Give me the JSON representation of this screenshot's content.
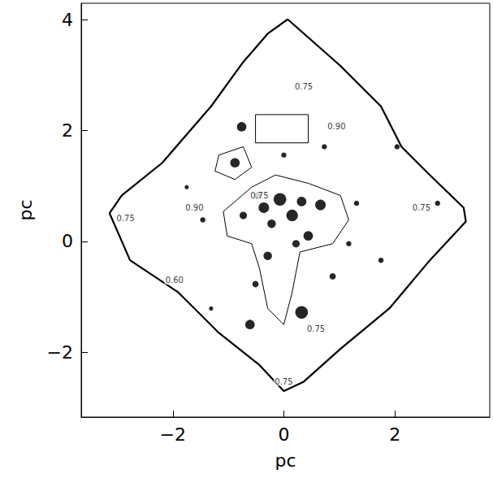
{
  "chart_data": {
    "type": "contour",
    "xlabel": "pc",
    "ylabel": "pc",
    "xlim": [
      -3.65,
      3.71
    ],
    "ylim": [
      -3.17,
      4.3
    ],
    "xticks": [
      {
        "value": -2,
        "label": "−2"
      },
      0,
      2
    ],
    "yticks": [
      {
        "value": -2,
        "label": "−2"
      },
      0,
      2,
      4
    ],
    "color": "#000000",
    "contours": [
      {
        "level": 0.75,
        "x": [
          0.07,
          1.02,
          1.75,
          2.12,
          2.63,
          3.24,
          3.28,
          2.63,
          1.9,
          1.02,
          0.36,
          0,
          -0.44,
          -1.17,
          -1.9,
          -2.77,
          -3.14,
          -2.92,
          -2.19,
          -1.31,
          -0.73,
          -0.29
        ],
        "y": [
          4.01,
          3.17,
          2.44,
          1.71,
          1.2,
          0.61,
          0.36,
          -0.34,
          -1.21,
          -1.94,
          -2.53,
          -2.7,
          -2.23,
          -1.65,
          -0.92,
          -0.34,
          0.51,
          0.83,
          1.42,
          2.44,
          3.24,
          3.75
        ]
      },
      {
        "level": 0.9,
        "x": [
          -0.58,
          -0.15,
          0.44,
          1.02,
          1.17,
          0.88,
          0.29,
          0.15,
          0,
          -0.29,
          -0.44,
          -0.58,
          -1.02,
          -1.09
        ],
        "y": [
          0.98,
          1.2,
          1.05,
          0.83,
          0.39,
          -0.04,
          -0.19,
          -0.92,
          -1.5,
          -1.21,
          -0.48,
          -0.04,
          0.1,
          0.54
        ]
      },
      {
        "level": 0.9,
        "x": [
          -1.17,
          -0.73,
          -0.58,
          -0.88,
          -1.24
        ],
        "y": [
          1.56,
          1.71,
          1.34,
          1.12,
          1.27
        ]
      },
      {
        "level": 0.9,
        "x": [
          -0.51,
          0.44,
          0.44,
          -0.51
        ],
        "y": [
          2.29,
          2.29,
          1.78,
          1.78
        ]
      }
    ],
    "contour_labels": [
      {
        "text": "0.75",
        "x": 0.36,
        "y": 2.8
      },
      {
        "text": "0.90",
        "x": 0.95,
        "y": 2.07
      },
      {
        "text": "0.75",
        "x": -2.85,
        "y": 0.42
      },
      {
        "text": "0.90",
        "x": -1.61,
        "y": 0.61
      },
      {
        "text": "0.75",
        "x": -0.44,
        "y": 0.83
      },
      {
        "text": "0.60",
        "x": -1.97,
        "y": -0.7
      },
      {
        "text": "0.75",
        "x": 0.58,
        "y": -1.58
      },
      {
        "text": "0.75",
        "x": 0,
        "y": -2.53
      },
      {
        "text": "0.75",
        "x": 2.48,
        "y": 0.61
      }
    ],
    "stars": {
      "x": [
        -0.36,
        -0.07,
        0.15,
        0.32,
        -0.22,
        0.44,
        0.66,
        0.22,
        -0.47,
        -0.73,
        -0.76,
        -0.88,
        0.32,
        -0.61,
        -0.29,
        -0.51,
        0.88,
        1.31,
        1.75,
        0.73,
        -1.46,
        -1.75,
        2.04,
        2.77,
        1.17,
        -1.31,
        0
      ],
      "y": [
        0.61,
        0.76,
        0.47,
        0.72,
        0.32,
        0.1,
        0.66,
        -0.04,
        0.83,
        0.47,
        2.07,
        1.42,
        -1.28,
        -1.5,
        -0.26,
        -0.77,
        -0.63,
        0.69,
        -0.34,
        1.71,
        0.39,
        0.98,
        1.71,
        0.69,
        -0.04,
        -1.21,
        1.56
      ],
      "size": [
        10,
        12,
        11,
        9,
        8,
        9,
        10,
        7,
        7,
        7,
        9,
        9,
        12,
        9,
        8,
        6,
        6,
        5,
        5,
        5,
        5,
        4,
        5,
        5,
        5,
        4,
        5
      ]
    }
  }
}
